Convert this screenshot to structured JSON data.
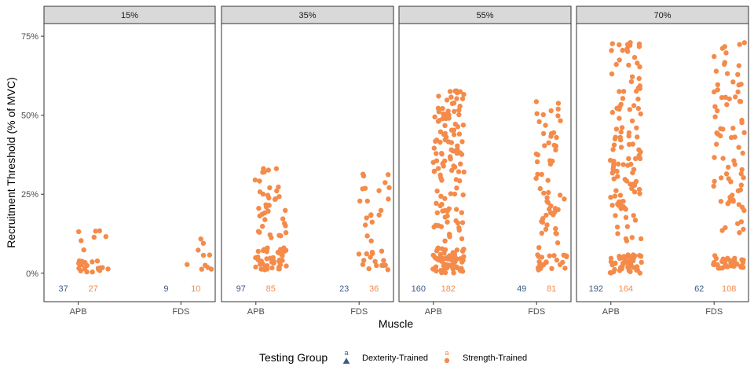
{
  "chart_data": {
    "type": "scatter",
    "subtype": "faceted jittered strip plot",
    "xlabel": "Muscle",
    "ylabel": "Recruitment Threshold (% of MVC)",
    "ylim": [
      -9,
      79
    ],
    "y_ticks": [
      0,
      25,
      50,
      75
    ],
    "y_tick_labels": [
      "0%",
      "25%",
      "50%",
      "75%"
    ],
    "categories": [
      "APB",
      "FDS"
    ],
    "grid": false,
    "legend": {
      "title": "Testing Group",
      "position": "bottom",
      "key_letter": "a",
      "entries": [
        "Dexterity-Trained",
        "Strength-Trained"
      ]
    },
    "series": [
      {
        "name": "Dexterity-Trained",
        "color": "#3b5a86",
        "shape": "triangle"
      },
      {
        "name": "Strength-Trained",
        "color": "#f48b4a",
        "shape": "circle"
      }
    ],
    "facets": [
      {
        "label": "15%",
        "counts": {
          "APB": {
            "Dexterity-Trained": "37",
            "Strength-Trained": "27"
          },
          "FDS": {
            "Dexterity-Trained": "9",
            "Strength-Trained": "10"
          }
        },
        "distributions": {
          "APB": {
            "Dexterity-Trained": {
              "clusters": [
                {
                  "share": 0.75,
                  "min": 1.5,
                  "max": 4.5
                },
                {
                  "share": 0.25,
                  "min": 5,
                  "max": 15.5
                }
              ]
            },
            "Strength-Trained": {
              "clusters": [
                {
                  "share": 0.75,
                  "min": 0,
                  "max": 4
                },
                {
                  "share": 0.25,
                  "min": 5,
                  "max": 15
                }
              ]
            }
          },
          "FDS": {
            "Dexterity-Trained": {
              "clusters": [
                {
                  "share": 0.7,
                  "min": 1.5,
                  "max": 3
                },
                {
                  "share": 0.3,
                  "min": 5,
                  "max": 16
                }
              ]
            },
            "Strength-Trained": {
              "clusters": [
                {
                  "share": 0.5,
                  "min": 1,
                  "max": 3
                },
                {
                  "share": 0.5,
                  "min": 4,
                  "max": 14.5
                }
              ]
            }
          }
        }
      },
      {
        "label": "35%",
        "counts": {
          "APB": {
            "Dexterity-Trained": "97",
            "Strength-Trained": "85"
          },
          "FDS": {
            "Dexterity-Trained": "23",
            "Strength-Trained": "36"
          }
        },
        "distributions": {
          "APB": {
            "Dexterity-Trained": {
              "clusters": [
                {
                  "share": 0.35,
                  "min": 1.5,
                  "max": 5
                },
                {
                  "share": 0.65,
                  "min": 10,
                  "max": 39
                }
              ]
            },
            "Strength-Trained": {
              "clusters": [
                {
                  "share": 0.55,
                  "min": 1,
                  "max": 8
                },
                {
                  "share": 0.45,
                  "min": 10,
                  "max": 34
                }
              ]
            }
          },
          "FDS": {
            "Dexterity-Trained": {
              "clusters": [
                {
                  "share": 0.45,
                  "min": 2,
                  "max": 4.5
                },
                {
                  "share": 0.55,
                  "min": 12,
                  "max": 26
                }
              ]
            },
            "Strength-Trained": {
              "clusters": [
                {
                  "share": 0.45,
                  "min": 1,
                  "max": 7
                },
                {
                  "share": 0.55,
                  "min": 10,
                  "max": 32.5
                }
              ]
            }
          }
        }
      },
      {
        "label": "55%",
        "counts": {
          "APB": {
            "Dexterity-Trained": "160",
            "Strength-Trained": "182"
          },
          "FDS": {
            "Dexterity-Trained": "49",
            "Strength-Trained": "81"
          }
        },
        "distributions": {
          "APB": {
            "Dexterity-Trained": {
              "clusters": [
                {
                  "share": 0.4,
                  "min": 1.5,
                  "max": 6
                },
                {
                  "share": 0.6,
                  "min": 8,
                  "max": 57
                }
              ]
            },
            "Strength-Trained": {
              "clusters": [
                {
                  "share": 0.35,
                  "min": 0,
                  "max": 8
                },
                {
                  "share": 0.65,
                  "min": 10,
                  "max": 58
                }
              ]
            }
          },
          "FDS": {
            "Dexterity-Trained": {
              "clusters": [
                {
                  "share": 0.6,
                  "min": 1.5,
                  "max": 5
                },
                {
                  "share": 0.4,
                  "min": 18,
                  "max": 60
                }
              ]
            },
            "Strength-Trained": {
              "clusters": [
                {
                  "share": 0.3,
                  "min": 1,
                  "max": 6
                },
                {
                  "share": 0.7,
                  "min": 8,
                  "max": 56.5
                }
              ]
            }
          }
        }
      },
      {
        "label": "70%",
        "counts": {
          "APB": {
            "Dexterity-Trained": "192",
            "Strength-Trained": "164"
          },
          "FDS": {
            "Dexterity-Trained": "62",
            "Strength-Trained": "108"
          }
        },
        "distributions": {
          "APB": {
            "Dexterity-Trained": {
              "clusters": [
                {
                  "share": 0.3,
                  "min": 1.5,
                  "max": 8
                },
                {
                  "share": 0.7,
                  "min": 10,
                  "max": 73
                }
              ]
            },
            "Strength-Trained": {
              "clusters": [
                {
                  "share": 0.3,
                  "min": 0,
                  "max": 6
                },
                {
                  "share": 0.7,
                  "min": 10,
                  "max": 73
                }
              ]
            }
          },
          "FDS": {
            "Dexterity-Trained": {
              "clusters": [
                {
                  "share": 0.6,
                  "min": 1.5,
                  "max": 6
                },
                {
                  "share": 0.4,
                  "min": 22,
                  "max": 74.5
                }
              ]
            },
            "Strength-Trained": {
              "clusters": [
                {
                  "share": 0.3,
                  "min": 1.5,
                  "max": 6
                },
                {
                  "share": 0.7,
                  "min": 12,
                  "max": 74
                }
              ]
            }
          }
        }
      }
    ]
  }
}
